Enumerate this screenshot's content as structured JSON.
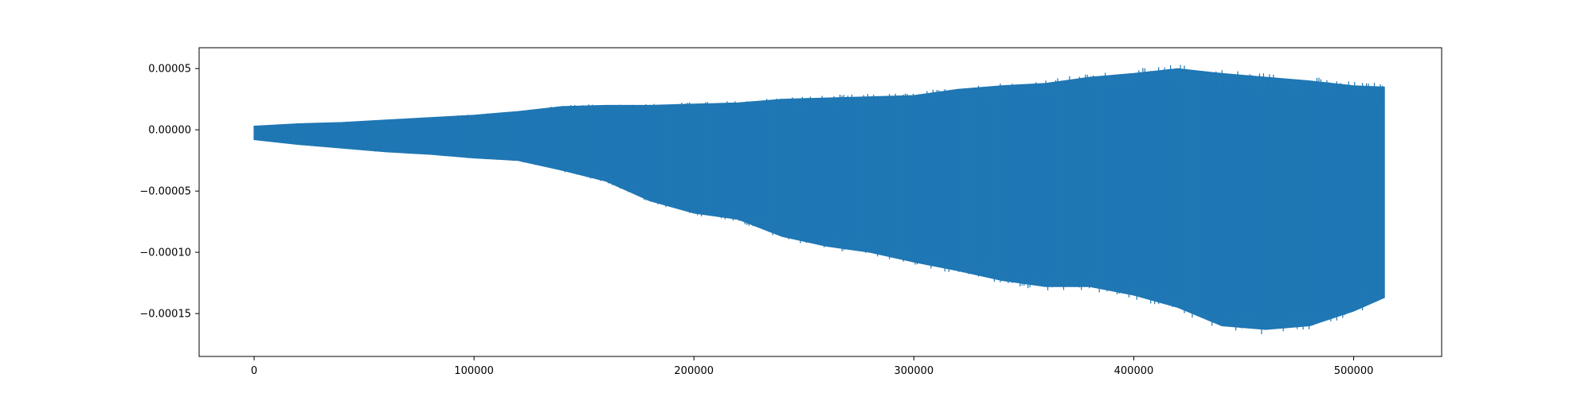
{
  "chart_data": {
    "type": "line",
    "title": "",
    "xlabel": "",
    "ylabel": "",
    "grid": false,
    "legend": "none",
    "color": "#1f77b4",
    "xlim": [
      -25000,
      540000
    ],
    "ylim": [
      -0.000185,
      6.7e-05
    ],
    "xticks": [
      0,
      100000,
      200000,
      300000,
      400000,
      500000
    ],
    "xtick_labels": [
      "0",
      "100000",
      "200000",
      "300000",
      "400000",
      "500000"
    ],
    "yticks": [
      5e-05,
      0.0,
      -5e-05,
      -0.0001,
      -0.00015
    ],
    "ytick_labels": [
      "0.00005",
      "0.00000",
      "−0.00005",
      "−0.00010",
      "−0.00015"
    ],
    "series": [
      {
        "x": [
          0,
          20000,
          40000,
          60000,
          80000,
          100000,
          120000,
          140000,
          160000,
          180000,
          200000,
          220000,
          240000,
          260000,
          280000,
          300000,
          320000,
          340000,
          360000,
          380000,
          400000,
          420000,
          440000,
          460000,
          480000,
          500000,
          514000
        ],
        "upper": [
          3e-06,
          5e-06,
          6e-06,
          8e-06,
          1e-05,
          1.2e-05,
          1.5e-05,
          1.9e-05,
          2e-05,
          2e-05,
          2.1e-05,
          2.2e-05,
          2.5e-05,
          2.6e-05,
          2.7e-05,
          2.8e-05,
          3.3e-05,
          3.6e-05,
          3.8e-05,
          4.3e-05,
          4.6e-05,
          5e-05,
          4.6e-05,
          4.3e-05,
          4e-05,
          3.6e-05,
          3.5e-05
        ],
        "lower": [
          -8e-06,
          -1.2e-05,
          -1.5e-05,
          -1.8e-05,
          -2e-05,
          -2.3e-05,
          -2.5e-05,
          -3.3e-05,
          -4.2e-05,
          -5.8e-05,
          -6.8e-05,
          -7.3e-05,
          -8.7e-05,
          -9.5e-05,
          -0.0001,
          -0.000108,
          -0.000115,
          -0.000123,
          -0.000128,
          -0.000128,
          -0.000135,
          -0.000145,
          -0.00016,
          -0.000163,
          -0.00016,
          -0.000148,
          -0.000137
        ]
      }
    ]
  }
}
